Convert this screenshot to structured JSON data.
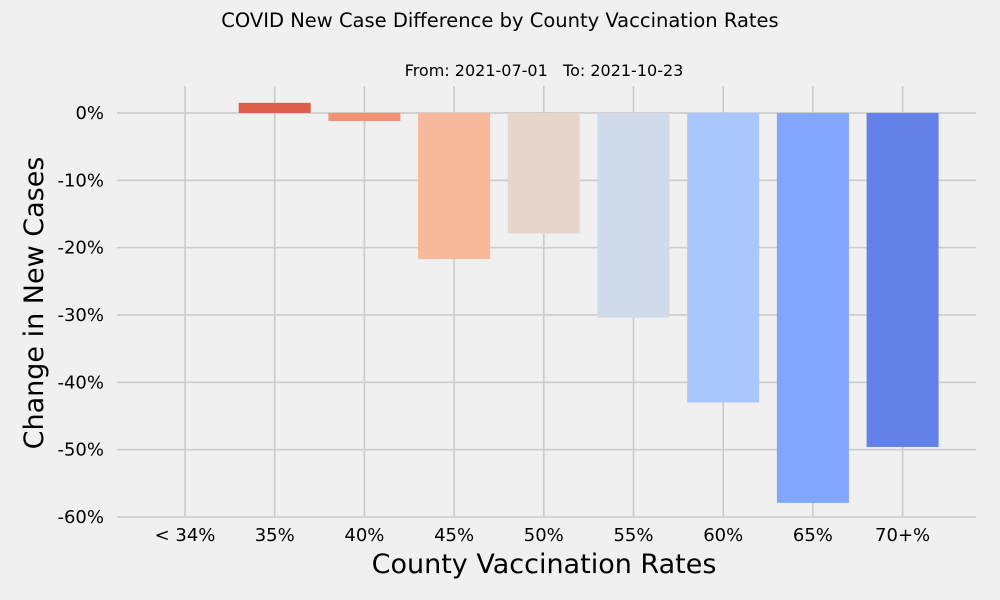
{
  "chart_data": {
    "type": "bar",
    "title": "COVID New Case Difference by County Vaccination Rates",
    "subtitle": "From: 2021-07-01   To: 2021-10-23",
    "xlabel": "County Vaccination Rates",
    "ylabel": "Change in New Cases",
    "categories": [
      "< 34%",
      "35%",
      "40%",
      "45%",
      "50%",
      "55%",
      "60%",
      "65%",
      "70+%"
    ],
    "values": [
      0,
      1.5,
      -1.2,
      -21.7,
      -17.9,
      -30.4,
      -43.0,
      -57.9,
      -49.6
    ],
    "value_unit": "%",
    "ylim": [
      -60,
      4
    ],
    "yticks": [
      0,
      -10,
      -20,
      -30,
      -40,
      -50,
      -60
    ],
    "ytick_labels": [
      "0%",
      "-10%",
      "-20%",
      "-30%",
      "-40%",
      "-50%",
      "-60%"
    ],
    "grid": true,
    "colors": [
      "#b40426",
      "#dc5d4a",
      "#f29274",
      "#f7b89c",
      "#e8d6cc",
      "#cfdaea",
      "#aac7fd",
      "#82a6fb",
      "#6282ea"
    ],
    "background": "#f0f0f0",
    "grid_color": "#cbcbcb",
    "text_color": "#000000"
  }
}
